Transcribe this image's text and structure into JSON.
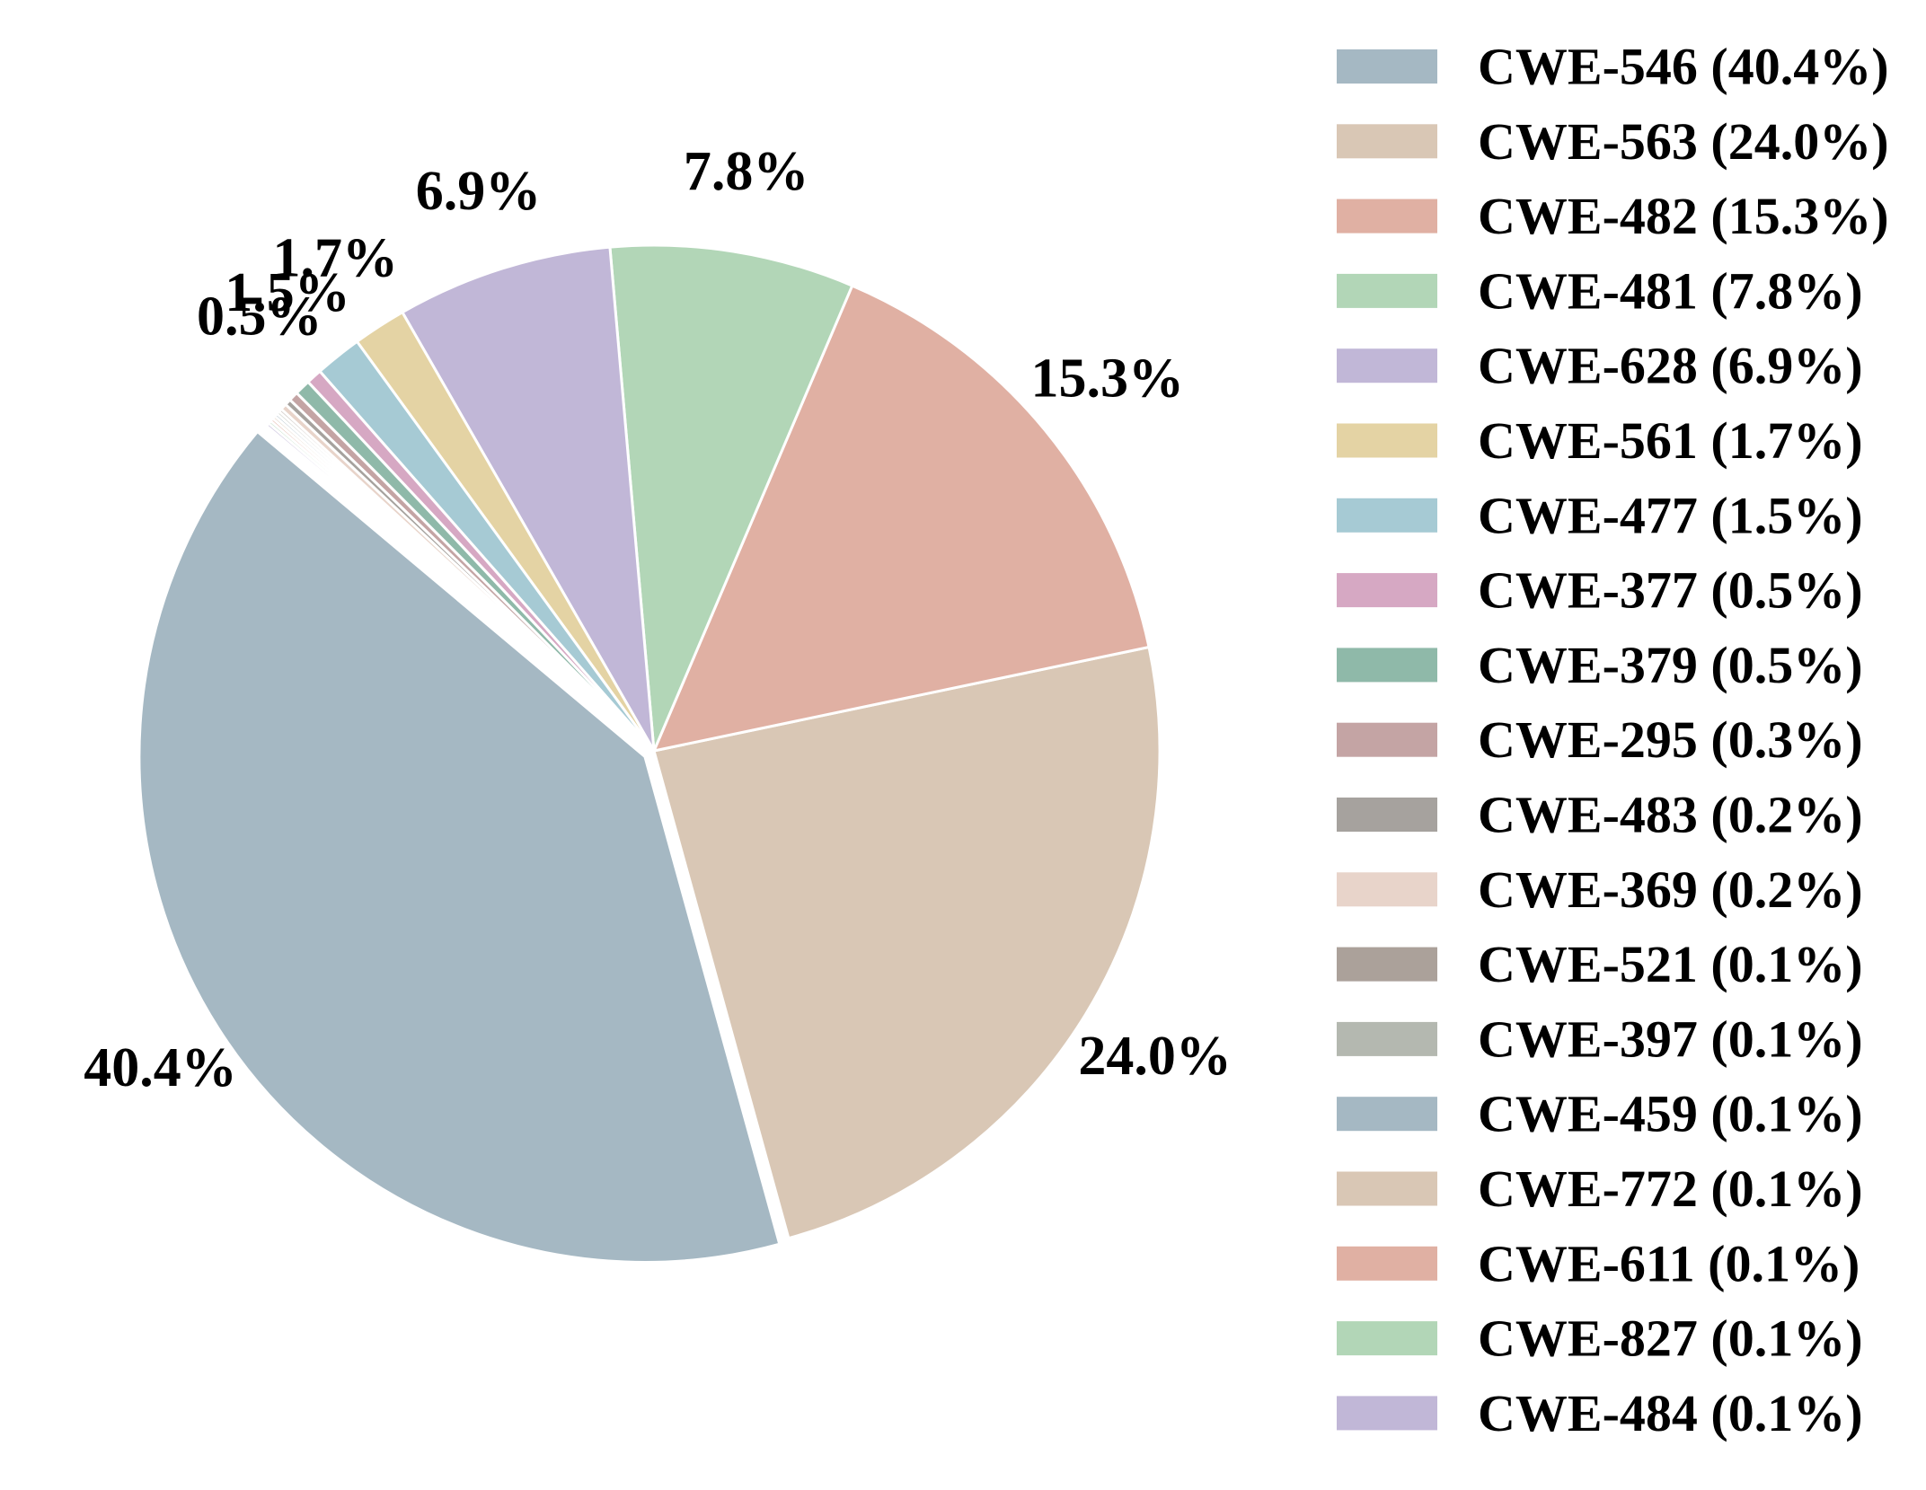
{
  "chart_data": {
    "type": "pie",
    "title": "",
    "start_angle_deg": 140,
    "direction": "counterclockwise",
    "explode_first_slice": true,
    "legend_position": "right",
    "slice_edge_color": "#ffffff",
    "categories": [
      "CWE-546",
      "CWE-563",
      "CWE-482",
      "CWE-481",
      "CWE-628",
      "CWE-561",
      "CWE-477",
      "CWE-377",
      "CWE-379",
      "CWE-295",
      "CWE-483",
      "CWE-369",
      "CWE-521",
      "CWE-397",
      "CWE-459",
      "CWE-772",
      "CWE-611",
      "CWE-827",
      "CWE-484"
    ],
    "values": [
      40.4,
      24.0,
      15.3,
      7.8,
      6.9,
      1.7,
      1.5,
      0.5,
      0.5,
      0.3,
      0.2,
      0.2,
      0.1,
      0.1,
      0.1,
      0.1,
      0.1,
      0.1,
      0.1
    ],
    "slice_labels": [
      "40.4%",
      "24.0%",
      "15.3%",
      "7.8%",
      "6.9%",
      "1.7%",
      "1.5%",
      "0.5%",
      "",
      "",
      "",
      "",
      "",
      "",
      "",
      "",
      "",
      "",
      ""
    ],
    "legend_entries": [
      "CWE-546 (40.4%)",
      "CWE-563 (24.0%)",
      "CWE-482 (15.3%)",
      "CWE-481 (7.8%)",
      "CWE-628 (6.9%)",
      "CWE-561 (1.7%)",
      "CWE-477 (1.5%)",
      "CWE-377 (0.5%)",
      "CWE-379 (0.5%)",
      "CWE-295 (0.3%)",
      "CWE-483 (0.2%)",
      "CWE-369 (0.2%)",
      "CWE-521 (0.1%)",
      "CWE-397 (0.1%)",
      "CWE-459 (0.1%)",
      "CWE-772 (0.1%)",
      "CWE-611 (0.1%)",
      "CWE-827 (0.1%)",
      "CWE-484 (0.1%)"
    ],
    "colors": [
      "#a5b8c3",
      "#d9c7b5",
      "#e0b0a3",
      "#b2d6b7",
      "#c1b7d7",
      "#e4d3a4",
      "#a6cad4",
      "#d6a8c3",
      "#8fb9a9",
      "#c4a4a4",
      "#a6a29e",
      "#e8d4ca",
      "#aba19a",
      "#b4b8b0",
      "#a5b8c3",
      "#d9c7b5",
      "#e0b0a3",
      "#b2d6b7",
      "#c1b7d7"
    ]
  }
}
